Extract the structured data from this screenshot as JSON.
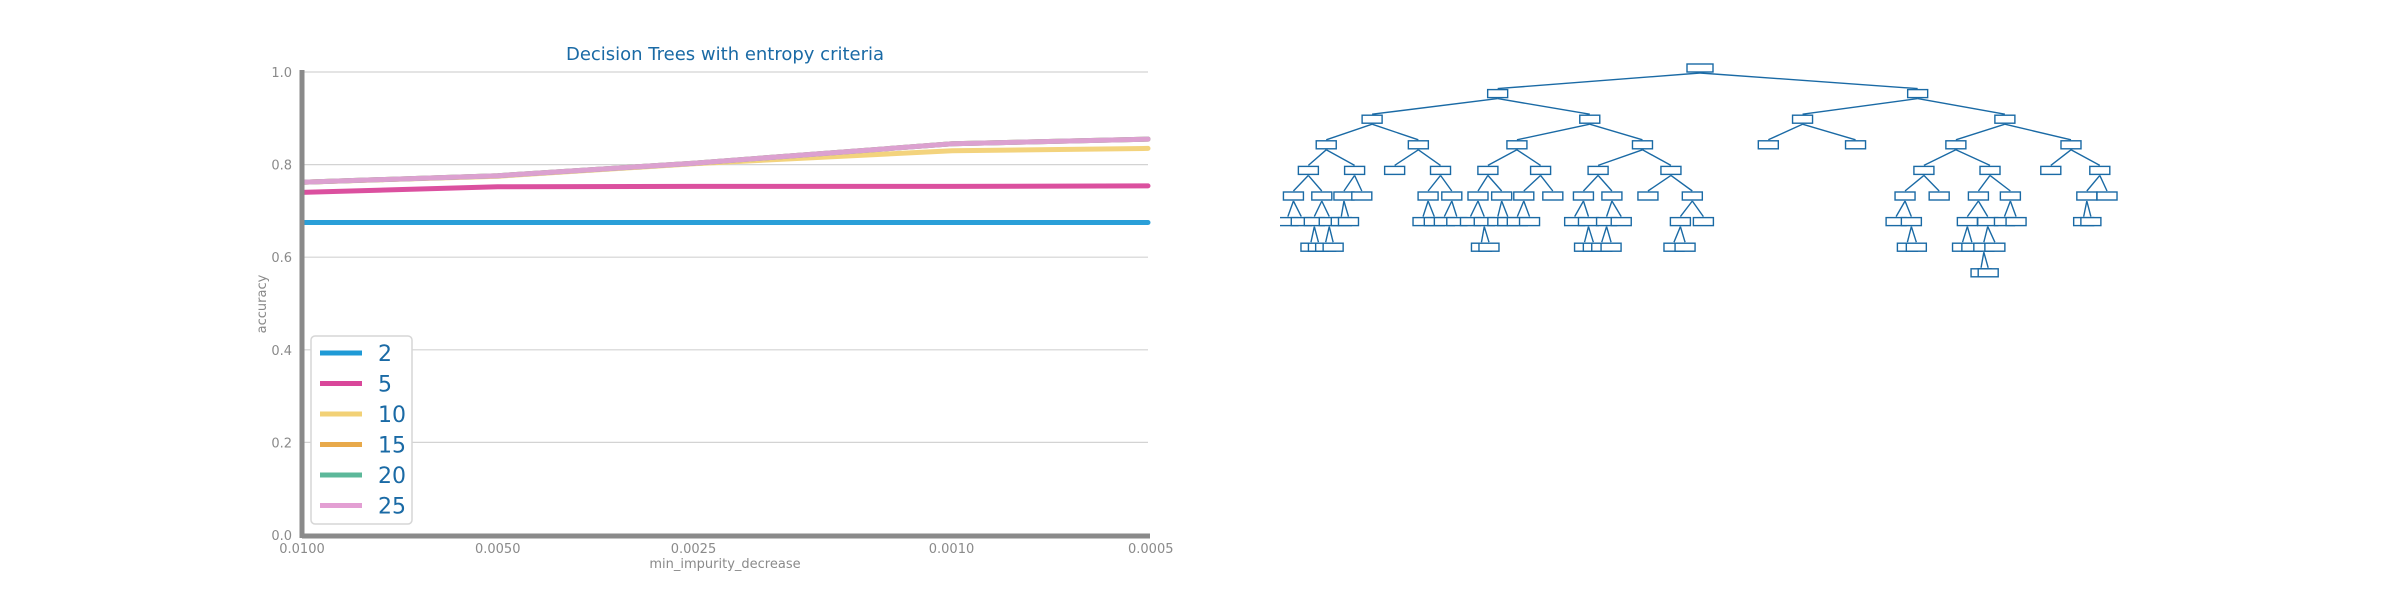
{
  "chart_data": {
    "type": "line",
    "title": "Decision Trees with entropy criteria",
    "xlabel": "min_impurity_decrease",
    "ylabel": "accuracy",
    "x": [
      0.01,
      0.005,
      0.0025,
      0.001,
      0.0005
    ],
    "x_tick_labels": [
      "0.0100",
      "0.0050",
      "0.0025",
      "0.0010",
      "0.0005"
    ],
    "y_ticks": [
      0.0,
      0.2,
      0.4,
      0.6,
      0.8,
      1.0
    ],
    "y_tick_labels": [
      "0.0",
      "0.2",
      "0.4",
      "0.6",
      "0.8",
      "1.0"
    ],
    "ylim": [
      0.0,
      1.0
    ],
    "grid": "horizontal",
    "legend_position": "lower-left",
    "series": [
      {
        "name": "2",
        "color": "#1f9ad6",
        "values": [
          0.675,
          0.675,
          0.675,
          0.675,
          0.675
        ]
      },
      {
        "name": "5",
        "color": "#d9479a",
        "values": [
          0.74,
          0.752,
          0.753,
          0.753,
          0.754
        ]
      },
      {
        "name": "10",
        "color": "#f2d176",
        "values": [
          0.762,
          0.775,
          0.802,
          0.83,
          0.835
        ]
      },
      {
        "name": "15",
        "color": "#e8a94a",
        "values": [
          0.762,
          0.776,
          0.803,
          0.845,
          0.855
        ]
      },
      {
        "name": "20",
        "color": "#5cb89a",
        "values": [
          0.762,
          0.776,
          0.803,
          0.845,
          0.855
        ]
      },
      {
        "name": "25",
        "color": "#e39fd3",
        "values": [
          0.762,
          0.776,
          0.803,
          0.845,
          0.855
        ]
      }
    ]
  },
  "tree_panel": {
    "color": "#1a6aa5",
    "depth": 17
  }
}
